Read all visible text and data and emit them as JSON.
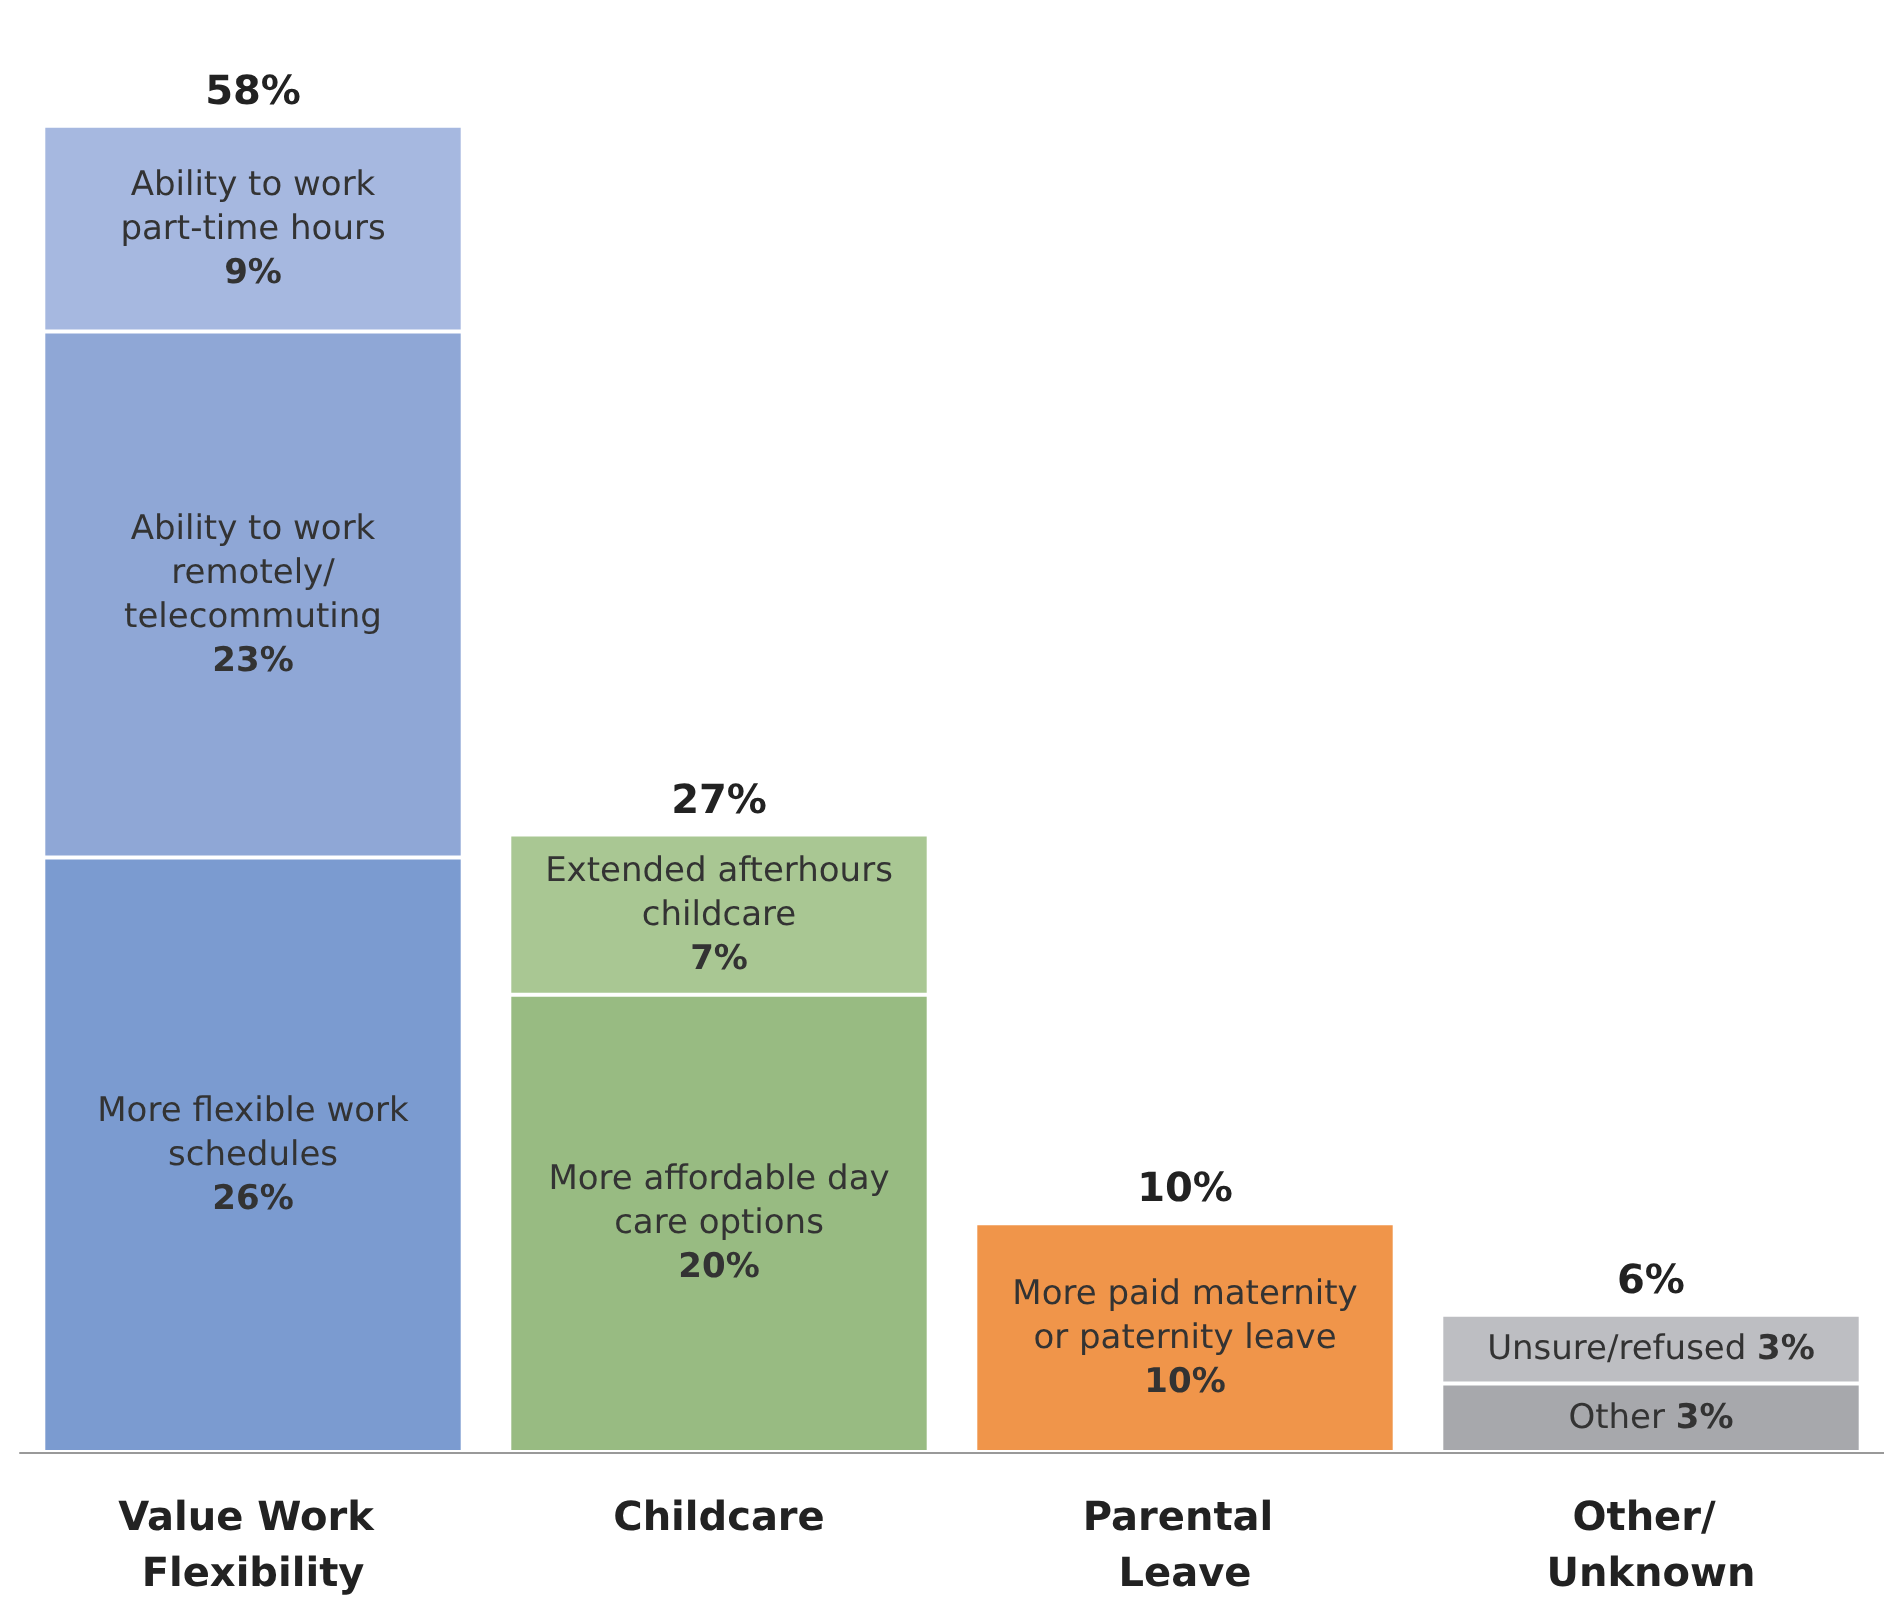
{
  "chart_data": {
    "type": "bar",
    "stacked": true,
    "categories": [
      "Value Work Flexibility",
      "Childcare",
      "Parental Leave",
      "Other/ Unknown"
    ],
    "series": [
      {
        "name": "More flexible work schedules",
        "color": "#7b9bd0",
        "values": [
          26,
          null,
          null,
          null
        ],
        "value_labels": [
          "26%",
          null,
          null,
          null
        ]
      },
      {
        "name": "Ability to work remotely/ telecommuting",
        "color": "#8fa7d6",
        "values": [
          23,
          null,
          null,
          null
        ],
        "value_labels": [
          "23%",
          null,
          null,
          null
        ]
      },
      {
        "name": "Ability to work part-time hours",
        "color": "#a6b8e0",
        "values": [
          9,
          null,
          null,
          null
        ],
        "value_labels": [
          "9%",
          null,
          null,
          null
        ]
      },
      {
        "name": "More affordable day care options",
        "color": "#98bb82",
        "values": [
          null,
          20,
          null,
          null
        ],
        "value_labels": [
          null,
          "20%",
          null,
          null
        ]
      },
      {
        "name": "Extended afterhours childcare",
        "color": "#a9c793",
        "values": [
          null,
          7,
          null,
          null
        ],
        "value_labels": [
          null,
          "7%",
          null,
          null
        ]
      },
      {
        "name": "More paid maternity or paternity leave",
        "color": "#f0954a",
        "values": [
          null,
          null,
          10,
          null
        ],
        "value_labels": [
          null,
          null,
          "10%",
          null
        ]
      },
      {
        "name": "Other",
        "color": "#a7a8ac",
        "values": [
          null,
          null,
          null,
          3
        ],
        "value_labels": [
          null,
          null,
          null,
          "3%"
        ]
      },
      {
        "name": "Unsure/refused",
        "color": "#bdbec2",
        "values": [
          null,
          null,
          null,
          3
        ],
        "value_labels": [
          null,
          null,
          null,
          "3%"
        ]
      }
    ],
    "totals": [
      "58%",
      "27%",
      "10%",
      "6%"
    ]
  }
}
